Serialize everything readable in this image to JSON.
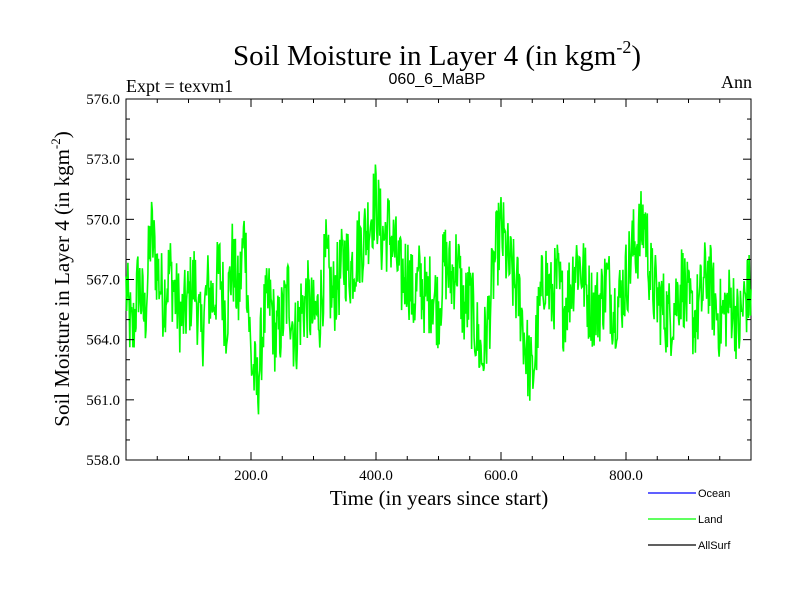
{
  "chart_data": {
    "type": "line",
    "title_main": "Soil Moisture in Layer 4 (in kgm",
    "title_sup": "-2",
    "title_close": ")",
    "header_left": "Expt = texvm1",
    "header_center": "060_6_MaBP",
    "header_right": "Ann",
    "xlabel": "Time (in years since start)",
    "ylabel_main": "Soil Moisture in Layer 4 (in kgm",
    "ylabel_sup": "-2",
    "ylabel_close": ")",
    "xlim": [
      0,
      1000
    ],
    "ylim": [
      558,
      576
    ],
    "x_ticks": [
      {
        "value": 200,
        "label": "200.0"
      },
      {
        "value": 400,
        "label": "400.0"
      },
      {
        "value": 600,
        "label": "600.0"
      },
      {
        "value": 800,
        "label": "800.0"
      }
    ],
    "y_ticks": [
      {
        "value": 558,
        "label": "558.0"
      },
      {
        "value": 561,
        "label": "561.0"
      },
      {
        "value": 564,
        "label": "564.0"
      },
      {
        "value": 567,
        "label": "567.0"
      },
      {
        "value": 570,
        "label": "570.0"
      },
      {
        "value": 573,
        "label": "573.0"
      },
      {
        "value": 576,
        "label": "576.0"
      }
    ],
    "legend": [
      {
        "name": "Ocean",
        "color": "#0000ff"
      },
      {
        "name": "Land",
        "color": "#00ff00"
      },
      {
        "name": "AllSurf",
        "color": "#000000"
      }
    ],
    "series": [
      {
        "name": "Land",
        "color": "#00ff00",
        "x": [
          0,
          10,
          20,
          30,
          40,
          50,
          60,
          70,
          80,
          90,
          100,
          110,
          120,
          130,
          140,
          150,
          160,
          170,
          180,
          190,
          200,
          210,
          220,
          230,
          240,
          250,
          260,
          270,
          280,
          290,
          300,
          310,
          320,
          330,
          340,
          350,
          360,
          370,
          380,
          390,
          400,
          410,
          420,
          430,
          440,
          450,
          460,
          470,
          480,
          490,
          500,
          510,
          520,
          530,
          540,
          550,
          560,
          570,
          580,
          590,
          600,
          610,
          620,
          630,
          640,
          650,
          660,
          670,
          680,
          690,
          700,
          710,
          720,
          730,
          740,
          750,
          760,
          770,
          780,
          790,
          800,
          810,
          820,
          830,
          840,
          850,
          860,
          870,
          880,
          890,
          900,
          910,
          920,
          930,
          940,
          950,
          960,
          970,
          980,
          990,
          1000
        ],
        "values": [
          566.5,
          564,
          567,
          565,
          569.5,
          567.5,
          566,
          567.5,
          566,
          565,
          566,
          567,
          564,
          566.5,
          566,
          567.5,
          565,
          568,
          566,
          569.5,
          563,
          561.5,
          565,
          566,
          564,
          565,
          566.5,
          564,
          565.5,
          566,
          565,
          565.5,
          568,
          566,
          567,
          568,
          567.5,
          568.5,
          569,
          570,
          571,
          569,
          569.5,
          568.5,
          567,
          567.5,
          566,
          567,
          566,
          566.5,
          565.5,
          568,
          567,
          568,
          565.5,
          566,
          564.5,
          563,
          565,
          568,
          569.5,
          568,
          567,
          566,
          563.5,
          562,
          565,
          567.5,
          566,
          567,
          565.5,
          566.5,
          568,
          567.5,
          566,
          565.5,
          566,
          567,
          565.5,
          566,
          567,
          568.5,
          569,
          570,
          567,
          566,
          565.5,
          565,
          566,
          567,
          565.5,
          565,
          566,
          567.5,
          566,
          565,
          565.5,
          566,
          564.5,
          566,
          566.5
        ]
      }
    ]
  }
}
